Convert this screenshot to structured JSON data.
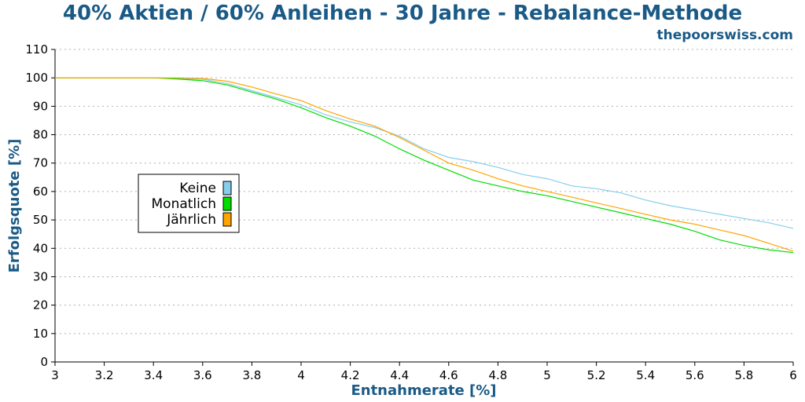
{
  "chart_data": {
    "type": "line",
    "title": "40% Aktien / 60% Anleihen - 30 Jahre - Rebalance-Methode",
    "subtitle": "thepoorswiss.com",
    "xlabel": "Entnahmerate [%]",
    "ylabel": "Erfolgsquote [%]",
    "xlim": [
      3,
      6
    ],
    "ylim": [
      0,
      110
    ],
    "x_ticks": [
      "3",
      "3.2",
      "3.4",
      "3.6",
      "3.8",
      "4",
      "4.2",
      "4.4",
      "4.6",
      "4.8",
      "5",
      "5.2",
      "5.4",
      "5.6",
      "5.8",
      "6"
    ],
    "y_ticks": [
      "0",
      "10",
      "20",
      "30",
      "40",
      "50",
      "60",
      "70",
      "80",
      "90",
      "100",
      "110"
    ],
    "grid": "horizontal",
    "legend_position": "left-middle",
    "series": [
      {
        "name": "Keine",
        "color": "#87ceeb",
        "x": [
          3.0,
          3.4,
          3.5,
          3.6,
          3.7,
          3.8,
          3.9,
          4.0,
          4.1,
          4.2,
          4.3,
          4.4,
          4.5,
          4.6,
          4.7,
          4.8,
          4.9,
          5.0,
          5.1,
          5.2,
          5.3,
          5.4,
          5.5,
          5.6,
          5.7,
          5.8,
          5.9,
          6.0
        ],
        "y": [
          100,
          100,
          99.8,
          99.5,
          98,
          95.5,
          93,
          90.5,
          87,
          84.5,
          82.5,
          79.5,
          75,
          72,
          70.5,
          68.5,
          66,
          64.5,
          62,
          61,
          59.5,
          57,
          55,
          53.5,
          52,
          50.5,
          49,
          47
        ]
      },
      {
        "name": "Monatlich",
        "color": "#00dd00",
        "x": [
          3.0,
          3.4,
          3.5,
          3.6,
          3.7,
          3.8,
          3.9,
          4.0,
          4.1,
          4.2,
          4.3,
          4.4,
          4.5,
          4.6,
          4.7,
          4.8,
          4.9,
          5.0,
          5.1,
          5.2,
          5.3,
          5.4,
          5.5,
          5.6,
          5.7,
          5.8,
          5.9,
          6.0
        ],
        "y": [
          100,
          100,
          99.6,
          99,
          97.5,
          95,
          92.5,
          89.5,
          86,
          83,
          79.5,
          75,
          71,
          67.5,
          64,
          62,
          60,
          58.5,
          56.5,
          54.5,
          52.5,
          50.5,
          48.5,
          46,
          43,
          41,
          39.5,
          38.5
        ]
      },
      {
        "name": "Jährlich",
        "color": "#ffa500",
        "x": [
          3.0,
          3.4,
          3.5,
          3.6,
          3.7,
          3.8,
          3.9,
          4.0,
          4.1,
          4.2,
          4.3,
          4.4,
          4.5,
          4.6,
          4.7,
          4.8,
          4.9,
          5.0,
          5.1,
          5.2,
          5.3,
          5.4,
          5.5,
          5.6,
          5.7,
          5.8,
          5.9,
          6.0
        ],
        "y": [
          100,
          100,
          100,
          99.8,
          98.8,
          96.8,
          94.3,
          92,
          88.5,
          85.5,
          83,
          79,
          74.5,
          70,
          67.5,
          64.5,
          62,
          60,
          58,
          56,
          54,
          52,
          50,
          48.5,
          46.5,
          44.5,
          41.8,
          39
        ]
      }
    ]
  }
}
